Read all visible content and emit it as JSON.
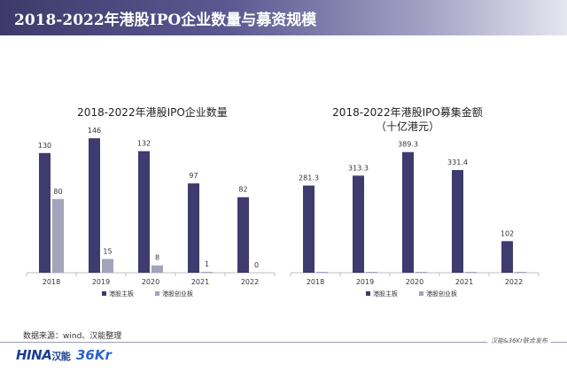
{
  "header": {
    "title": "2018-2022年港股IPO企业数量与募资规模"
  },
  "source": "数据来源：wind、汉能整理",
  "footer": {
    "right_text": "汉能&36Kr联合发布"
  },
  "logos": {
    "china": "HINA",
    "china_sub": "汉能",
    "kr": "36Kr"
  },
  "colors": {
    "main_board": "#3f3b6e",
    "gem_board": "#a3a3bc"
  },
  "chart_data": [
    {
      "type": "bar",
      "title": "2018-2022年港股IPO企业数量",
      "categories": [
        "2018",
        "2019",
        "2020",
        "2021",
        "2022"
      ],
      "series": [
        {
          "name": "港股主板",
          "values": [
            130,
            146,
            132,
            97,
            82
          ]
        },
        {
          "name": "港股创业板",
          "values": [
            80,
            15,
            8,
            1,
            0
          ]
        }
      ],
      "ylim": [
        0,
        150
      ],
      "grid": false,
      "legend": "bottom"
    },
    {
      "type": "bar",
      "title": "2018-2022年港股IPO募集金额",
      "subtitle": "（十亿港元）",
      "categories": [
        "2018",
        "2019",
        "2020",
        "2021",
        "2022"
      ],
      "series": [
        {
          "name": "港股主板",
          "values": [
            281.3,
            313.3,
            389.3,
            331.4,
            102
          ],
          "labels": [
            "281.3",
            "313.3",
            "389.3",
            "331.4",
            "102"
          ]
        },
        {
          "name": "港股创业板",
          "values": [
            1.5,
            0.8,
            0.5,
            0.3,
            0.1
          ]
        }
      ],
      "ylim": [
        0,
        400
      ],
      "grid": false,
      "legend": "bottom"
    }
  ]
}
